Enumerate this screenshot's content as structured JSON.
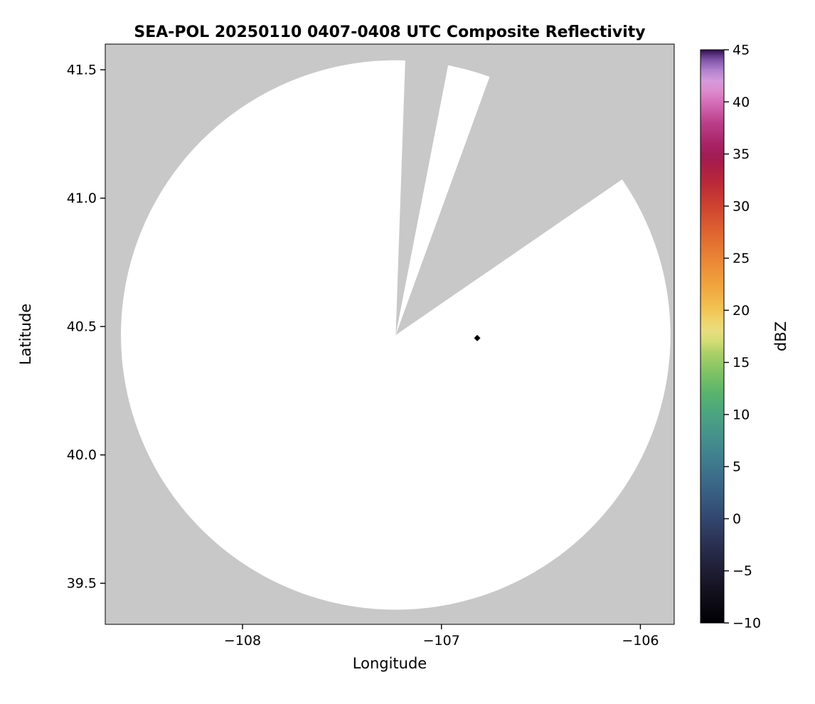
{
  "chart_data": {
    "type": "heatmap",
    "title": "SEA-POL 20250110 0407-0408 UTC Composite Reflectivity",
    "xlabel": "Longitude",
    "ylabel": "Latitude",
    "xlim": [
      -108.69,
      -105.83
    ],
    "ylim": [
      39.34,
      41.6
    ],
    "xticks": [
      -108,
      -107,
      -106
    ],
    "yticks": [
      39.5,
      40.0,
      40.5,
      41.0,
      41.5
    ],
    "grid": false,
    "legend": "none",
    "background_color": "#c8c8c8",
    "coverage_color": "#ffffff",
    "radar": {
      "center_lon": -107.23,
      "center_lat": 40.467,
      "radius_deg_lat": 1.07,
      "blocked_sectors_deg_from_north": [
        [
          2,
          11
        ],
        [
          20,
          55.5
        ]
      ]
    },
    "marker": {
      "lon": -106.82,
      "lat": 40.455,
      "shape": "diamond",
      "color": "#000000"
    },
    "colorbar": {
      "label": "dBZ",
      "min": -10,
      "max": 45,
      "position": "right",
      "ticks": [
        45,
        40,
        35,
        30,
        25,
        20,
        15,
        10,
        5,
        0,
        -5,
        -10
      ],
      "colormap_name": "spectral-radar",
      "stops": [
        [
          -10,
          "#010005"
        ],
        [
          -8,
          "#0d0b14"
        ],
        [
          -6,
          "#191729"
        ],
        [
          -4,
          "#23243f"
        ],
        [
          -2,
          "#2c3457"
        ],
        [
          0,
          "#32466e"
        ],
        [
          2,
          "#375a7f"
        ],
        [
          4,
          "#3c6d8a"
        ],
        [
          6,
          "#40808e"
        ],
        [
          8,
          "#45928b"
        ],
        [
          10,
          "#4aa480"
        ],
        [
          12,
          "#58b36c"
        ],
        [
          14,
          "#7fc263"
        ],
        [
          16,
          "#afd168"
        ],
        [
          17,
          "#d4dc74"
        ],
        [
          18,
          "#e9dd7f"
        ],
        [
          19,
          "#efd36b"
        ],
        [
          20,
          "#f2c455"
        ],
        [
          22,
          "#f1a93f"
        ],
        [
          24,
          "#ed9038"
        ],
        [
          26,
          "#e67733"
        ],
        [
          28,
          "#db5d30"
        ],
        [
          30,
          "#cd4230"
        ],
        [
          32,
          "#bc2b38"
        ],
        [
          34,
          "#a81d49"
        ],
        [
          35,
          "#a21d58"
        ],
        [
          36,
          "#a82467"
        ],
        [
          38,
          "#bb3f8a"
        ],
        [
          39,
          "#c957a2"
        ],
        [
          40,
          "#d56fb8"
        ],
        [
          41,
          "#dc8acc"
        ],
        [
          42,
          "#d59bdc"
        ],
        [
          43,
          "#b383cf"
        ],
        [
          44,
          "#8156ab"
        ],
        [
          44.5,
          "#5c3382"
        ],
        [
          45,
          "#2d1244"
        ]
      ]
    }
  }
}
